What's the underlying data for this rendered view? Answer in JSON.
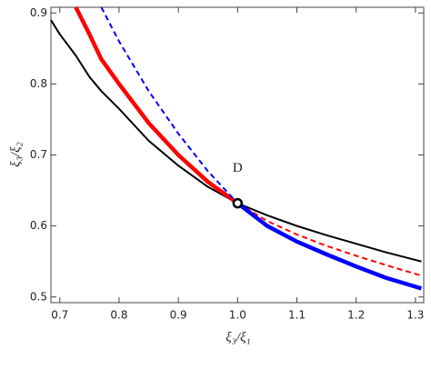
{
  "chart_data": {
    "type": "line",
    "x_label": "ξ₃/ξ₁",
    "y_label": "ξ₃/ξ₂",
    "xlim": [
      0.685,
      1.314
    ],
    "ylim": [
      0.492,
      0.908
    ],
    "xticks": [
      0.7,
      0.8,
      0.9,
      {
        "value": 1,
        "label": "1.0"
      },
      1.1,
      1.2,
      1.3
    ],
    "yticks": [
      0.5,
      0.6,
      0.7,
      0.8,
      0.9
    ],
    "x": [
      0.685,
      0.7,
      0.727,
      0.75,
      0.77,
      0.8,
      0.85,
      0.9,
      0.95,
      1.0,
      1.05,
      1.1,
      1.15,
      1.2,
      1.25,
      1.31
    ],
    "series": [
      {
        "color": "#000000",
        "dashed": false,
        "linewidth": 2,
        "values": [
          0.89,
          0.87,
          0.84,
          0.81,
          0.79,
          0.765,
          0.72,
          0.685,
          0.655,
          0.632,
          0.615,
          0.6,
          0.587,
          0.575,
          0.563,
          0.55
        ]
      },
      {
        "color": "#ff0000",
        "dashed": false,
        "linewidth": 4.5,
        "values": [
          null,
          null,
          0.908,
          0.87,
          0.835,
          0.8,
          0.745,
          0.7,
          0.662,
          0.632,
          null,
          null,
          null,
          null,
          null,
          null
        ]
      },
      {
        "color": "#ff0000",
        "dashed": true,
        "linewidth": 2,
        "values": [
          null,
          null,
          null,
          null,
          null,
          null,
          null,
          null,
          null,
          0.632,
          0.607,
          0.588,
          0.572,
          0.558,
          0.545,
          0.53
        ]
      },
      {
        "color": "#0000ff",
        "dashed": true,
        "linewidth": 2,
        "values": [
          null,
          null,
          null,
          null,
          0.908,
          0.86,
          0.79,
          0.73,
          0.677,
          0.632,
          null,
          null,
          null,
          null,
          null,
          null
        ]
      },
      {
        "color": "#0000ff",
        "dashed": false,
        "linewidth": 4.5,
        "values": [
          null,
          null,
          null,
          null,
          null,
          null,
          null,
          null,
          null,
          0.632,
          0.6,
          0.578,
          0.56,
          0.543,
          0.527,
          0.512
        ]
      }
    ],
    "point": {
      "label": "D",
      "x": 1.0,
      "y": 0.632
    }
  }
}
